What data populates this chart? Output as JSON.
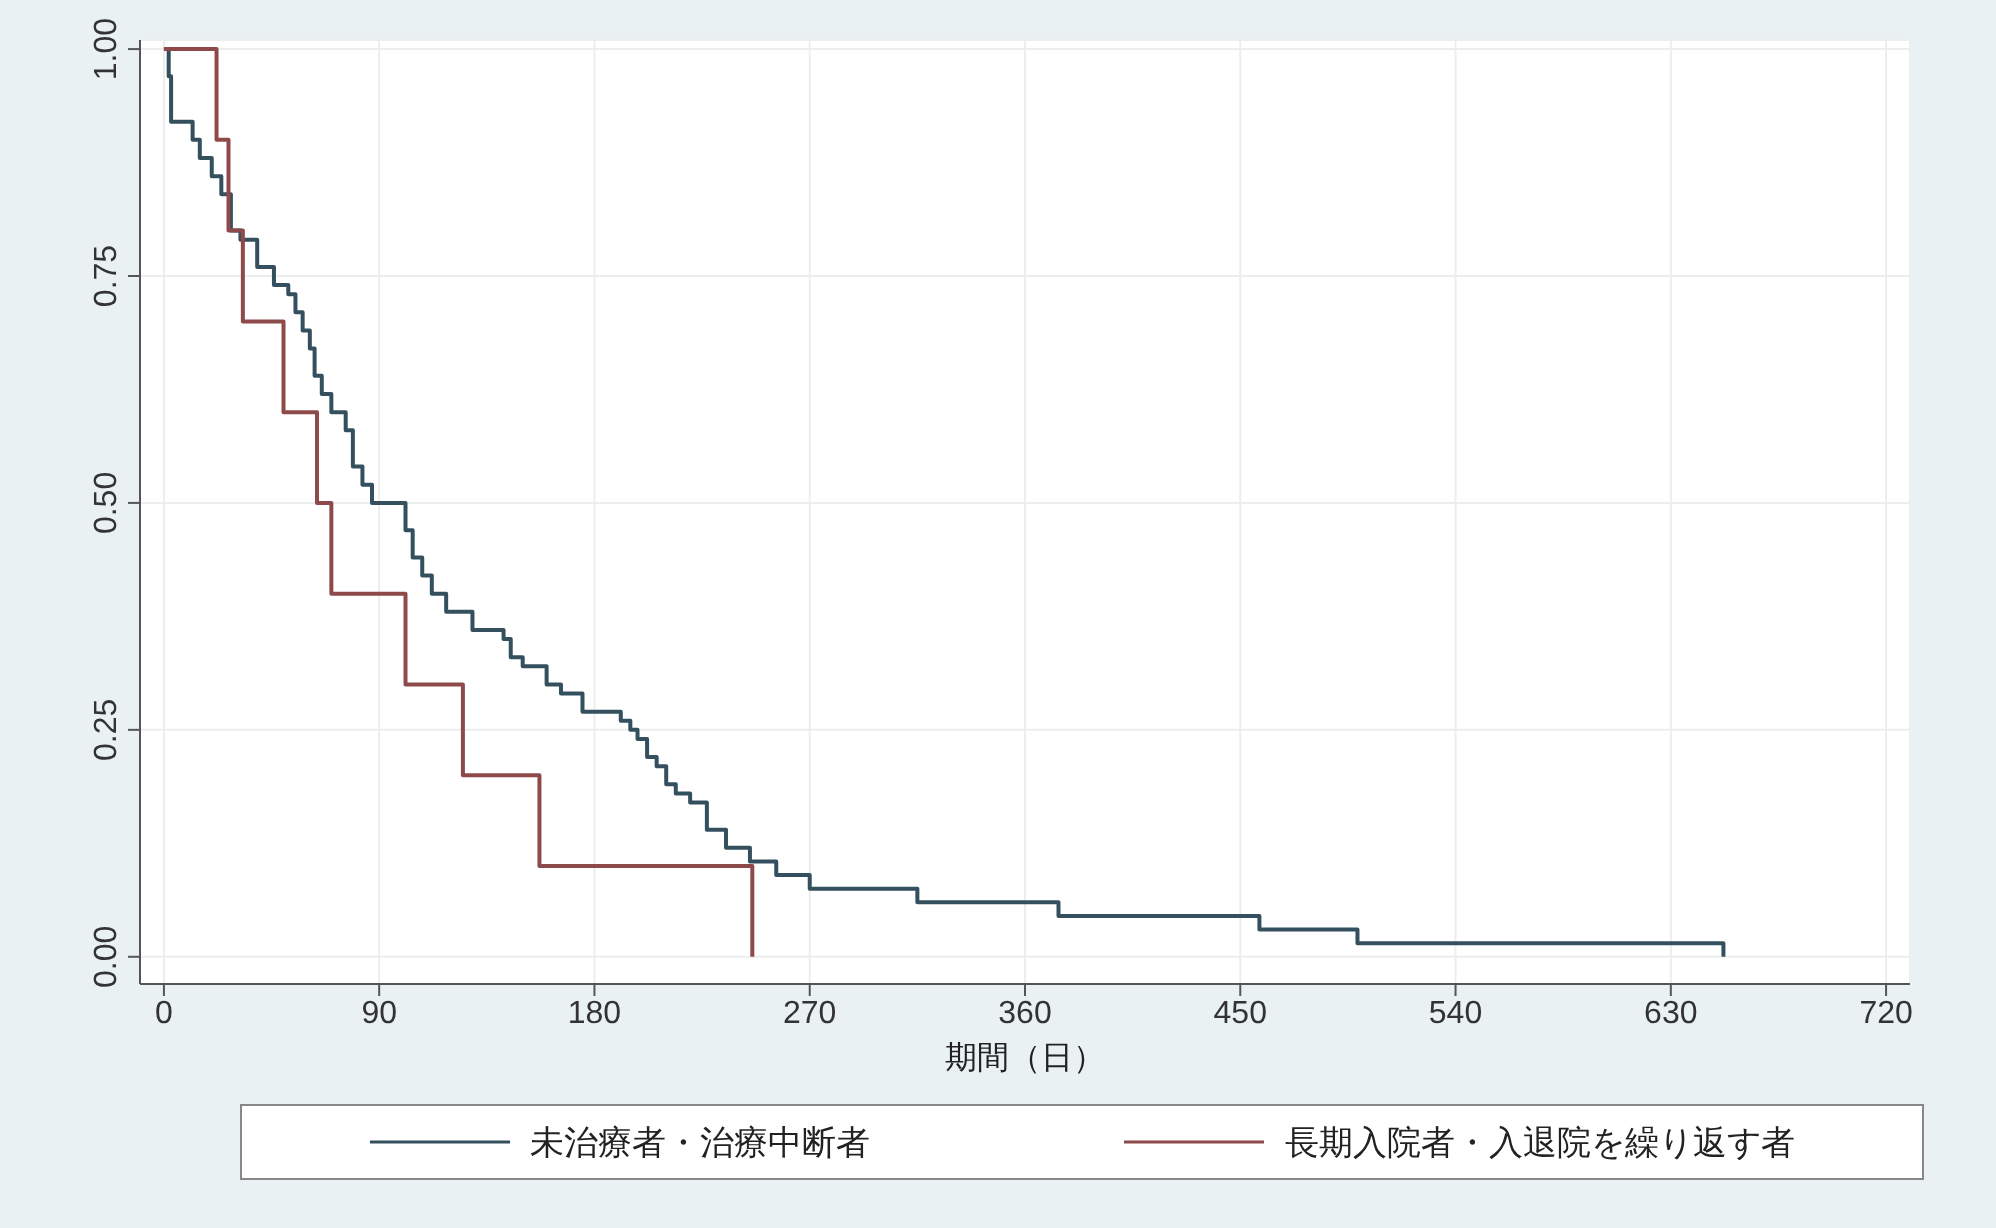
{
  "chart_data": {
    "type": "step",
    "xlabel": "期間（日）",
    "xlim": [
      -10,
      730
    ],
    "xticks": [
      0,
      90,
      180,
      270,
      360,
      450,
      540,
      630,
      720
    ],
    "ylim": [
      -0.03,
      1.01
    ],
    "yticks": [
      {
        "value": 0,
        "label": "0.00"
      },
      0.25,
      {
        "value": 0.5,
        "label": "0.50"
      },
      0.75,
      {
        "value": 1,
        "label": "1.00"
      }
    ],
    "grid": true,
    "legend": "bottom",
    "marker": "none",
    "line_style": "solid",
    "series": [
      {
        "name": "未治療者・治療中断者",
        "color": "#34505e",
        "x": [
          0,
          2,
          3,
          12,
          15,
          20,
          24,
          28,
          32,
          39,
          46,
          52,
          55,
          58,
          61,
          63,
          66,
          70,
          76,
          79,
          83,
          87,
          101,
          104,
          108,
          112,
          118,
          129,
          142,
          145,
          150,
          160,
          166,
          175,
          191,
          195,
          198,
          202,
          206,
          210,
          214,
          220,
          227,
          235,
          245,
          256,
          270,
          315,
          374,
          458,
          499,
          652
        ],
        "values": [
          1,
          0.97,
          0.92,
          0.9,
          0.88,
          0.86,
          0.84,
          0.8,
          0.79,
          0.76,
          0.74,
          0.73,
          0.71,
          0.69,
          0.67,
          0.64,
          0.62,
          0.6,
          0.58,
          0.54,
          0.52,
          0.5,
          0.47,
          0.44,
          0.42,
          0.4,
          0.38,
          0.36,
          0.35,
          0.33,
          0.32,
          0.3,
          0.29,
          0.27,
          0.26,
          0.25,
          0.24,
          0.22,
          0.21,
          0.19,
          0.18,
          0.17,
          0.14,
          0.12,
          0.105,
          0.09,
          0.075,
          0.06,
          0.045,
          0.03,
          0.015,
          0
        ]
      },
      {
        "name": "長期入院者・入退院を繰り返す者",
        "color": "#8e4a4a",
        "x": [
          0,
          22,
          27,
          33,
          50,
          64,
          70,
          101,
          125,
          157,
          246
        ],
        "values": [
          1,
          0.9,
          0.8,
          0.7,
          0.6,
          0.5,
          0.4,
          0.3,
          0.2,
          0.1,
          0
        ]
      }
    ]
  }
}
